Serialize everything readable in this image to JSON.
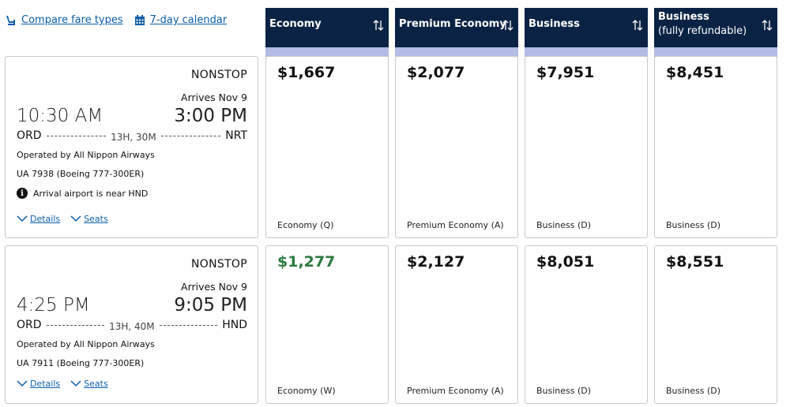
{
  "top_links": {
    "compare_fares": "Compare fare types",
    "calendar": "7-day calendar"
  },
  "columns": [
    {
      "name": "Economy",
      "sub": ""
    },
    {
      "name": "Premium Economy",
      "sub": ""
    },
    {
      "name": "Business",
      "sub": ""
    },
    {
      "name": "Business",
      "sub": "(fully refundable)"
    }
  ],
  "flights": [
    {
      "stops": "NONSTOP",
      "arrives": "Arrives Nov 9",
      "depart_time": "10:30 AM",
      "arrive_time": "3:00 PM",
      "origin": "ORD",
      "destination": "NRT",
      "duration": "13H, 30M",
      "operated_by": "Operated by All Nippon Airways",
      "equipment": "UA 7938 (Boeing 777-300ER)",
      "notice": "Arrival airport is near HND",
      "details_label": "Details",
      "seats_label": "Seats",
      "fares": [
        {
          "price": "$1,667",
          "code": "Economy (Q)"
        },
        {
          "price": "$2,077",
          "code": "Premium Economy (A)"
        },
        {
          "price": "$7,951",
          "code": "Business (D)"
        },
        {
          "price": "$8,451",
          "code": "Business (D)"
        }
      ]
    },
    {
      "stops": "NONSTOP",
      "arrives": "Arrives Nov 9",
      "depart_time": "4:25 PM",
      "arrive_time": "9:05 PM",
      "origin": "ORD",
      "destination": "HND",
      "duration": "13H, 40M",
      "operated_by": "Operated by All Nippon Airways",
      "equipment": "UA 7911 (Boeing 777-300ER)",
      "details_label": "Details",
      "seats_label": "Seats",
      "fares": [
        {
          "price": "$1,277",
          "code": "Economy (W)"
        },
        {
          "price": "$2,127",
          "code": "Premium Economy (A)"
        },
        {
          "price": "$8,051",
          "code": "Business (D)"
        },
        {
          "price": "$8,551",
          "code": "Business (D)"
        }
      ]
    }
  ],
  "colors": {
    "header_bg": "#0a2344",
    "header_band": "#b4bbe4",
    "link": "#0b5ea8",
    "lowest_price": "#2b7a3f"
  }
}
